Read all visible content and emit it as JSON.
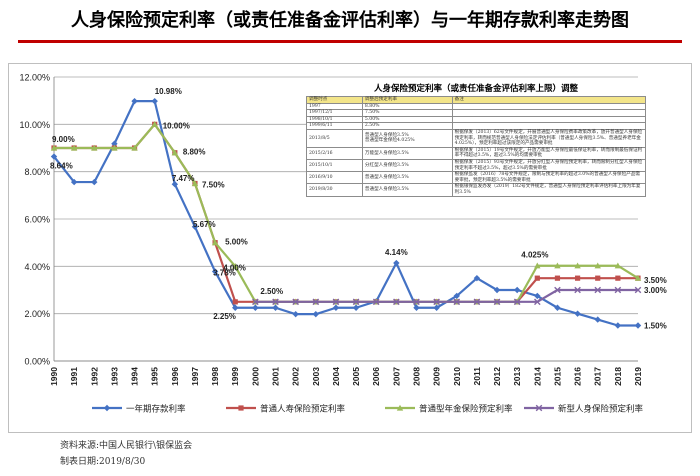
{
  "title": "人身保险预定利率（或责任准备金评估利率）与一年期存款利率走势图",
  "footer": {
    "source": "资料来源:中国人民银行\\银保监会",
    "date": "制表日期:2019/8/30"
  },
  "table": {
    "title": "人身保险预定利率（或责任准备金评估利率上限）调整",
    "headers": [
      "调整时点",
      "调整后预定利率",
      "备注"
    ],
    "rows": [
      [
        "1997",
        "8.80%",
        ""
      ],
      [
        "1997/12/1",
        "7.50%",
        ""
      ],
      [
        "1998/10/1",
        "5.00%",
        ""
      ],
      [
        "1999/6/11",
        "2.50%",
        ""
      ],
      [
        "2013/8/5",
        "普通型人身保险3.5%\n普通型年金保险4.025%",
        "根据保发（2013）62号文件规定，开展普通型人身保险费率政策改革，放开普通型人身保险预定利率，转而规范普通型人身保险法定评估利率（普通型人身保险3.5%、普通型养老年金4.025%），预定利率超过该限定的产品需要审批"
      ],
      [
        "2015/2/16",
        "万能型人身保险3.5%",
        "根据保发（2015）19号文件规定，开放万能型人身保险最低保证利率，转而限制最低保证利率不得超过3.5%，超过3.5%的均需要审批"
      ],
      [
        "2015/10/1",
        "分红型人身保险3.5%",
        "根据保发（2015）93号文件规定，开放分红型人身保险预定利率，转而限制分红型人身保险预定利率不超过3.5%，超过3.5%的需要审批"
      ],
      [
        "2016/9/10",
        "普通型人身保险3.5%",
        "根据保监发（2016）78号文件规定，限制与预定利率的超过3.0%的普通型人身保险产品需要审批，预定利率超3.5%的需要审批"
      ],
      [
        "2019/8/30",
        "普通型人身保险3.5%",
        "根据银保监发办发（2019）182号文件规定，普通型人身保险预定利率评估利率上限为年复利3.5%"
      ]
    ]
  },
  "colors": {
    "deposit": "#4472c4",
    "life": "#c0504d",
    "annuity": "#9bbb59",
    "new_life": "#8064a2",
    "title_rule": "#c00000"
  },
  "chart_data": {
    "type": "line",
    "x": [
      1990,
      1991,
      1992,
      1993,
      1994,
      1995,
      1996,
      1997,
      1998,
      1999,
      2000,
      2001,
      2002,
      2003,
      2004,
      2005,
      2006,
      2007,
      2008,
      2009,
      2010,
      2011,
      2012,
      2013,
      2014,
      2015,
      2016,
      2017,
      2018,
      2019
    ],
    "ylim": [
      0,
      12
    ],
    "yticks": [
      "0.00%",
      "2.00%",
      "4.00%",
      "6.00%",
      "8.00%",
      "10.00%",
      "12.00%"
    ],
    "grid": true,
    "legend_position": "bottom",
    "series": [
      {
        "name": "一年期存款利率",
        "key": "deposit",
        "marker": "diamond",
        "values": [
          8.64,
          7.56,
          7.56,
          9.18,
          10.98,
          10.98,
          7.47,
          5.67,
          3.78,
          2.25,
          2.25,
          2.25,
          1.98,
          1.98,
          2.25,
          2.25,
          2.52,
          4.14,
          2.25,
          2.25,
          2.75,
          3.5,
          3.0,
          3.0,
          2.75,
          2.25,
          2.0,
          1.75,
          1.5,
          1.5
        ]
      },
      {
        "name": "普通人寿保险预定利率",
        "key": "life",
        "marker": "square",
        "values": [
          9.0,
          9.0,
          9.0,
          9.0,
          9.0,
          10.0,
          8.8,
          7.5,
          5.0,
          2.5,
          2.5,
          2.5,
          2.5,
          2.5,
          2.5,
          2.5,
          2.5,
          2.5,
          2.5,
          2.5,
          2.5,
          2.5,
          2.5,
          2.5,
          3.5,
          3.5,
          3.5,
          3.5,
          3.5,
          3.5
        ]
      },
      {
        "name": "普通型年金保险预定利率",
        "key": "annuity",
        "marker": "triangle",
        "values": [
          9.0,
          9.0,
          9.0,
          9.0,
          9.0,
          10.0,
          8.8,
          7.5,
          5.0,
          4.0,
          2.5,
          2.5,
          2.5,
          2.5,
          2.5,
          2.5,
          2.5,
          2.5,
          2.5,
          2.5,
          2.5,
          2.5,
          2.5,
          2.5,
          4.025,
          4.025,
          4.025,
          4.025,
          4.025,
          3.5
        ]
      },
      {
        "name": "新型人身保险预定利率",
        "key": "new_life",
        "marker": "x",
        "values": [
          null,
          null,
          null,
          null,
          null,
          null,
          null,
          null,
          null,
          null,
          2.5,
          2.5,
          2.5,
          2.5,
          2.5,
          2.5,
          2.5,
          2.5,
          2.5,
          2.5,
          2.5,
          2.5,
          2.5,
          2.5,
          2.5,
          3.0,
          3.0,
          3.0,
          3.0,
          3.0
        ]
      }
    ],
    "annotations": [
      {
        "text": "8.64%",
        "x": 1990,
        "y": 8.64
      },
      {
        "text": "9.00%",
        "x": 1990,
        "y": 9.0
      },
      {
        "text": "10.98%",
        "x": 1995,
        "y": 10.98
      },
      {
        "text": "10.00%",
        "x": 1995,
        "y": 10.0
      },
      {
        "text": "8.80%",
        "x": 1996,
        "y": 8.8
      },
      {
        "text": "7.47%",
        "x": 1996,
        "y": 7.47
      },
      {
        "text": "7.50%",
        "x": 1997,
        "y": 7.5
      },
      {
        "text": "5.67%",
        "x": 1997,
        "y": 5.67
      },
      {
        "text": "5.00%",
        "x": 1998,
        "y": 5.0
      },
      {
        "text": "3.78%",
        "x": 1998,
        "y": 3.78
      },
      {
        "text": "4.00%",
        "x": 1999,
        "y": 4.0
      },
      {
        "text": "2.25%",
        "x": 1999,
        "y": 2.25
      },
      {
        "text": "2.50%",
        "x": 2000,
        "y": 2.5
      },
      {
        "text": "4.14%",
        "x": 2007,
        "y": 4.14
      },
      {
        "text": "4.025%",
        "x": 2014,
        "y": 4.025
      },
      {
        "text": "3.50%",
        "x": 2019,
        "y": 3.5
      },
      {
        "text": "3.00%",
        "x": 2019,
        "y": 3.0
      },
      {
        "text": "1.50%",
        "x": 2019,
        "y": 1.5
      }
    ]
  }
}
